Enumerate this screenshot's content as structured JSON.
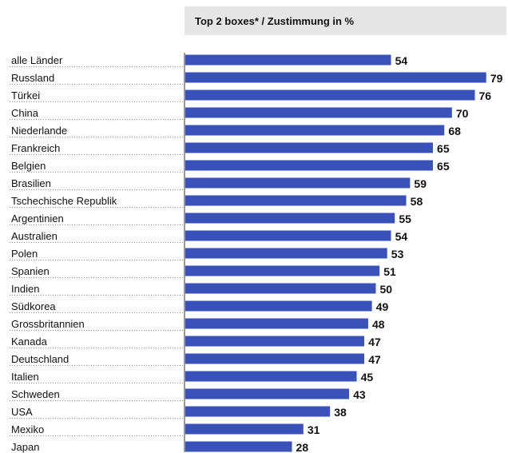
{
  "header": {
    "label": "Top 2 boxes* / Zustimmung in %"
  },
  "colors": {
    "bar": "#3a51b8",
    "header_bg": "#e6e6e6"
  },
  "chart_data": {
    "type": "bar",
    "orientation": "horizontal",
    "title": "Top 2 boxes* / Zustimmung in %",
    "categories": [
      "alle Länder",
      "Russland",
      "Türkei",
      "China",
      "Niederlande",
      "Frankreich",
      "Belgien",
      "Brasilien",
      "Tschechische Republik",
      "Argentinien",
      "Australien",
      "Polen",
      "Spanien",
      "Indien",
      "Südkorea",
      "Grossbritannien",
      "Kanada",
      "Deutschland",
      "Italien",
      "Schweden",
      "USA",
      "Mexiko",
      "Japan"
    ],
    "values": [
      54,
      79,
      76,
      70,
      68,
      65,
      65,
      59,
      58,
      55,
      54,
      53,
      51,
      50,
      49,
      48,
      47,
      47,
      45,
      43,
      38,
      31,
      28
    ],
    "xlim": [
      0,
      100
    ],
    "grid": false,
    "legend": "none"
  }
}
